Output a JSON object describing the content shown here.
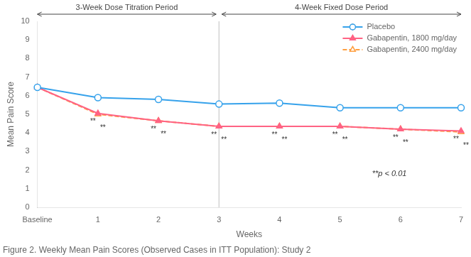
{
  "chart_data": {
    "type": "line",
    "categories": [
      "Baseline",
      "1",
      "2",
      "3",
      "4",
      "5",
      "6",
      "7"
    ],
    "series": [
      {
        "name": "Placebo",
        "marker": "open circle",
        "line_style": "solid",
        "values": [
          6.45,
          5.9,
          5.8,
          5.55,
          5.6,
          5.35,
          5.35,
          5.35
        ]
      },
      {
        "name": "Gabapentin, 1800 mg/day",
        "marker": "filled triangle",
        "line_style": "solid",
        "values": [
          6.45,
          5.05,
          4.65,
          4.35,
          4.35,
          4.35,
          4.2,
          4.1
        ],
        "point_labels": [
          null,
          "**",
          "**",
          "**",
          "**",
          "**",
          "**",
          "**"
        ]
      },
      {
        "name": "Gabapentin, 2400 mg/day",
        "marker": "open triangle",
        "line_style": "dashed",
        "values": [
          6.45,
          5.0,
          4.65,
          4.35,
          4.35,
          4.35,
          4.2,
          4.05
        ],
        "point_labels": [
          null,
          "**",
          "**",
          "**",
          "**",
          "**",
          "**",
          "**"
        ]
      }
    ],
    "xlabel": "Weeks",
    "ylabel": "Mean Pain Score",
    "ylim": [
      0,
      10
    ],
    "yticks": [
      0,
      1,
      2,
      3,
      4,
      5,
      6,
      7,
      8,
      9,
      10
    ],
    "grid": false,
    "legend": "upper right",
    "annotations": [
      {
        "text": "**p < 0.01"
      }
    ],
    "periods": [
      {
        "label": "3-Week Dose Titration Period",
        "from": "Baseline",
        "to": "3"
      },
      {
        "label": "4-Week Fixed Dose Period",
        "from": "3",
        "to": "7"
      }
    ],
    "caption": "Figure 2. Weekly Mean Pain Scores (Observed Cases in ITT Population): Study 2"
  }
}
